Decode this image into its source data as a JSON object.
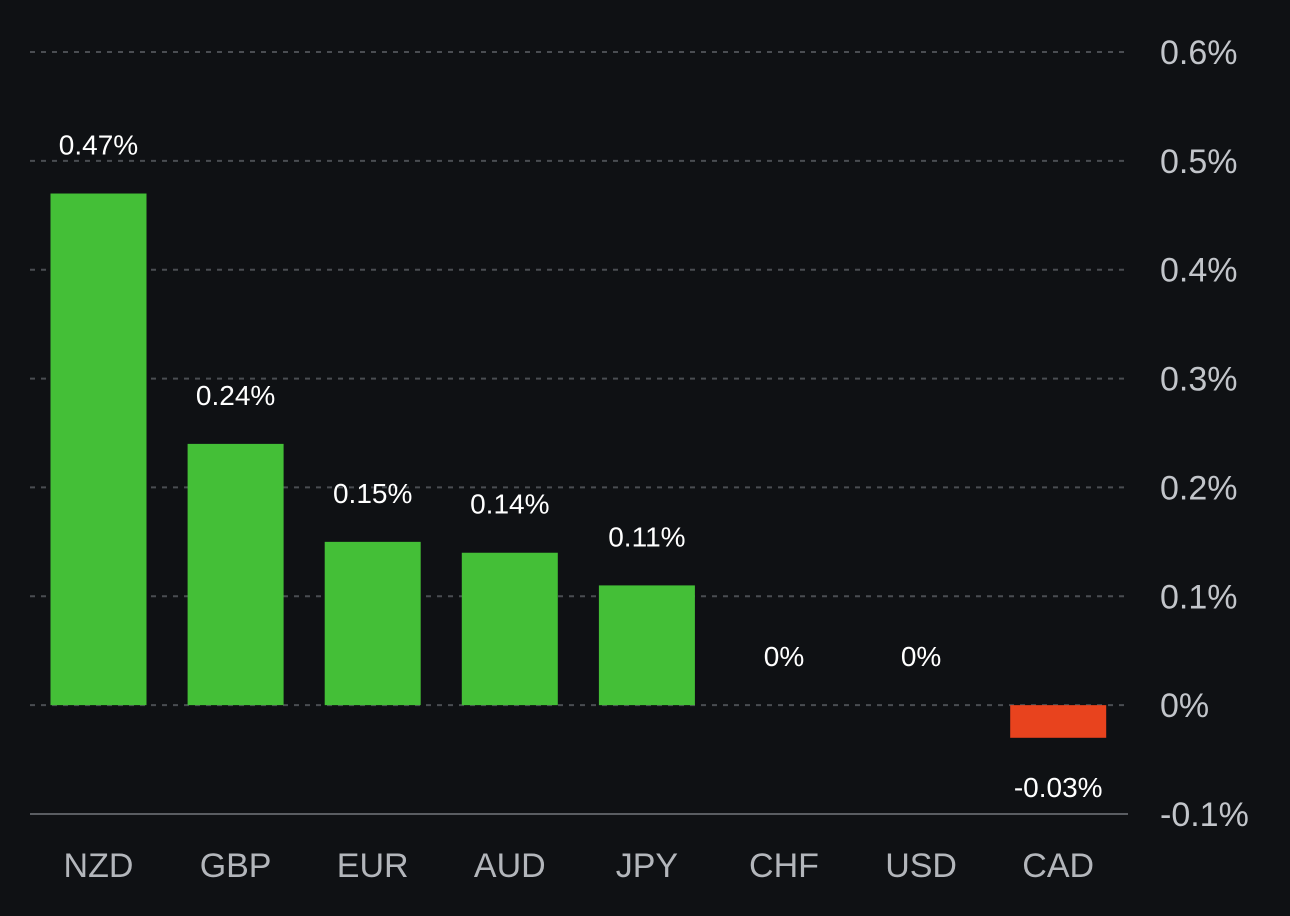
{
  "chart_data": {
    "type": "bar",
    "title": "",
    "xlabel": "",
    "ylabel": "",
    "categories": [
      "NZD",
      "GBP",
      "EUR",
      "AUD",
      "JPY",
      "CHF",
      "USD",
      "CAD"
    ],
    "values": [
      0.47,
      0.24,
      0.15,
      0.14,
      0.11,
      0,
      0,
      -0.03
    ],
    "data_labels": [
      "0.47%",
      "0.24%",
      "0.15%",
      "0.14%",
      "0.11%",
      "0%",
      "0%",
      "-0.03%"
    ],
    "ylim": [
      -0.1,
      0.6
    ],
    "y_ticks": [
      0.6,
      0.5,
      0.4,
      0.3,
      0.2,
      0.1,
      0,
      -0.1
    ],
    "y_tick_labels": [
      "0.6%",
      "0.5%",
      "0.4%",
      "0.3%",
      "0.2%",
      "0.1%",
      "0%",
      "-0.1%"
    ],
    "y_axis_side": "right",
    "grid": true,
    "legend": "none",
    "colors": {
      "positive": "#44bf37",
      "negative": "#e8431e",
      "background": "#0f1114"
    }
  }
}
